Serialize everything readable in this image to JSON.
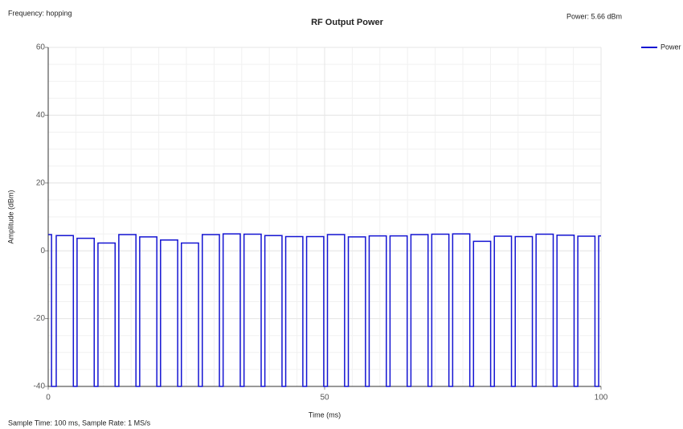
{
  "chart_data": {
    "type": "line",
    "title": "RF Output Power",
    "annotations": {
      "frequency": "Frequency: hopping",
      "power": "Power: 5.66 dBm",
      "sample": "Sample Time: 100 ms,  Sample Rate: 1 MS/s"
    },
    "xlabel": "Time (ms)",
    "ylabel": "Amplitude (dBm)",
    "xlim": [
      0,
      100
    ],
    "ylim": [
      -40,
      60
    ],
    "xticks": [
      0,
      50,
      100
    ],
    "yticks": [
      -40,
      -20,
      0,
      20,
      40,
      60
    ],
    "grid": true,
    "legend": "top-right",
    "x": [
      0,
      0.6,
      0.6,
      1.45,
      1.45,
      4.55,
      4.55,
      5.22,
      5.22,
      8.32,
      8.32,
      9,
      9,
      12.1,
      12.1,
      12.77,
      12.77,
      15.87,
      15.87,
      16.55,
      16.55,
      19.65,
      19.65,
      20.32,
      20.32,
      23.42,
      23.42,
      24.09,
      24.09,
      27.19,
      27.19,
      27.87,
      27.87,
      30.97,
      30.97,
      31.64,
      31.64,
      34.74,
      34.74,
      35.42,
      35.42,
      38.52,
      38.52,
      39.19,
      39.19,
      42.29,
      42.29,
      42.96,
      42.96,
      46.06,
      46.06,
      46.74,
      46.74,
      49.84,
      49.84,
      50.51,
      50.51,
      53.61,
      53.61,
      54.29,
      54.29,
      57.39,
      57.39,
      58.06,
      58.06,
      61.16,
      61.16,
      61.83,
      61.83,
      64.93,
      64.93,
      65.61,
      65.61,
      68.71,
      68.71,
      69.38,
      69.38,
      72.48,
      72.48,
      73.16,
      73.16,
      76.26,
      76.26,
      76.93,
      76.93,
      80.03,
      80.03,
      80.7,
      80.7,
      83.8,
      83.8,
      84.48,
      84.48,
      87.58,
      87.58,
      88.25,
      88.25,
      91.35,
      91.35,
      92.03,
      92.03,
      95.13,
      95.13,
      95.8,
      95.8,
      98.9,
      98.9,
      99.57,
      99.57,
      100
    ],
    "series": [
      {
        "name": "Power",
        "color": "#1414d2",
        "values": [
          4.8,
          4.8,
          -40,
          -40,
          4.5,
          4.5,
          -40,
          -40,
          3.7,
          3.7,
          -40,
          -40,
          2.3,
          2.3,
          -40,
          -40,
          4.8,
          4.8,
          -40,
          -40,
          4.1,
          4.1,
          -40,
          -40,
          3.2,
          3.2,
          -40,
          -40,
          2.3,
          2.3,
          -40,
          -40,
          4.8,
          4.8,
          -40,
          -40,
          5,
          5,
          -40,
          -40,
          4.9,
          4.9,
          -40,
          -40,
          4.5,
          4.5,
          -40,
          -40,
          4.2,
          4.2,
          -40,
          -40,
          4.2,
          4.2,
          -40,
          -40,
          4.8,
          4.8,
          -40,
          -40,
          4.1,
          4.1,
          -40,
          -40,
          4.4,
          4.4,
          -40,
          -40,
          4.4,
          4.4,
          -40,
          -40,
          4.8,
          4.8,
          -40,
          -40,
          4.9,
          4.9,
          -40,
          -40,
          5,
          5,
          -40,
          -40,
          2.8,
          2.8,
          -40,
          -40,
          4.3,
          4.3,
          -40,
          -40,
          4.2,
          4.2,
          -40,
          -40,
          4.9,
          4.9,
          -40,
          -40,
          4.6,
          4.6,
          -40,
          -40,
          4.3,
          4.3,
          -40,
          -40,
          4.4,
          4.4
        ]
      }
    ]
  }
}
